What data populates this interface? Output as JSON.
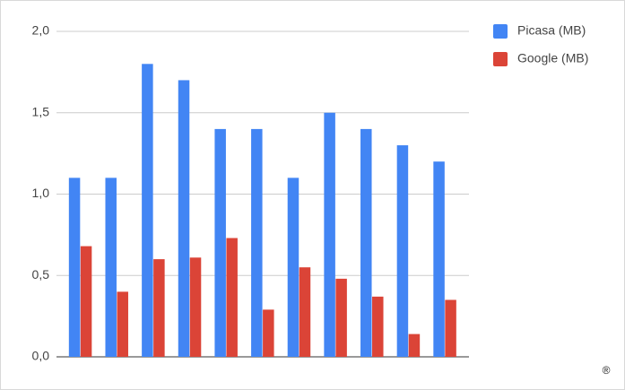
{
  "chart_data": {
    "type": "bar",
    "categories": [
      null,
      null,
      null,
      null,
      null,
      null,
      null,
      null,
      null,
      null,
      null
    ],
    "series": [
      {
        "name": "Picasa (MB)",
        "color": "#4285f4",
        "values": [
          1.1,
          1.1,
          1.8,
          1.7,
          1.4,
          1.4,
          1.1,
          1.5,
          1.4,
          1.3,
          1.2
        ]
      },
      {
        "name": "Google (MB)",
        "color": "#db4437",
        "values": [
          0.68,
          0.4,
          0.6,
          0.61,
          0.73,
          0.29,
          0.55,
          0.48,
          0.37,
          0.14,
          0.35
        ]
      }
    ],
    "ylim": [
      0,
      2
    ],
    "yticks": [
      {
        "value": 0,
        "label": "0,0"
      },
      {
        "value": 0.5,
        "label": "0,5"
      },
      {
        "value": 1,
        "label": "1,0"
      },
      {
        "value": 1.5,
        "label": "1,5"
      },
      {
        "value": 2,
        "label": "2,0"
      }
    ],
    "grid": true,
    "legend": "right",
    "footer_mark": "®"
  }
}
